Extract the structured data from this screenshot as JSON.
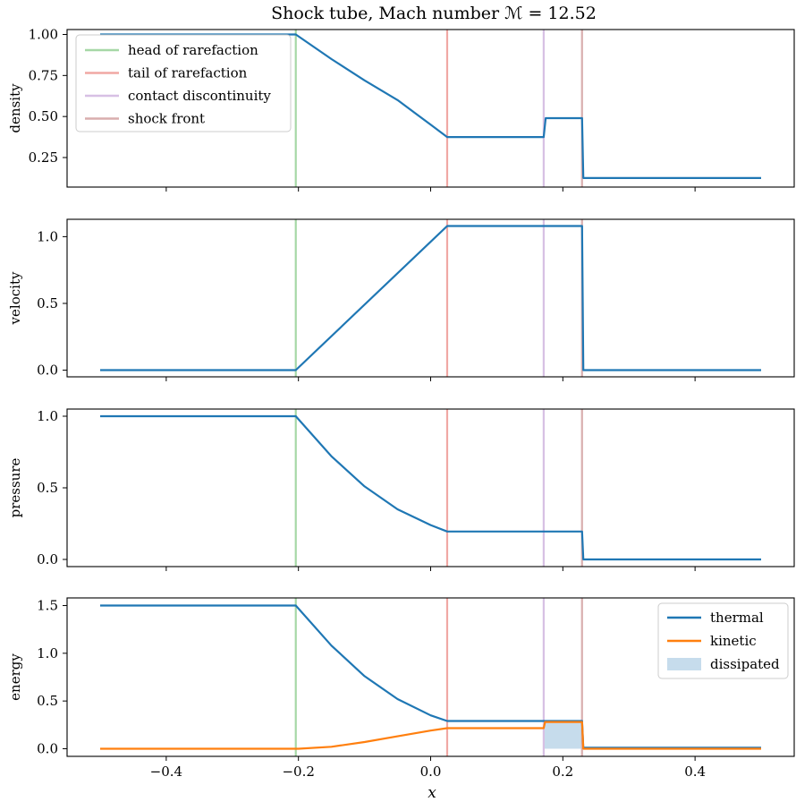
{
  "chart_data": {
    "type": "line",
    "title": "Shock tube, Mach number ℳ = 12.52",
    "xlabel": "x",
    "xlim": [
      -0.55,
      0.55
    ],
    "xticks": [
      -0.4,
      -0.2,
      0.0,
      0.2,
      0.4
    ],
    "xtick_labels": [
      "−0.4",
      "−0.2",
      "0.0",
      "0.2",
      "0.4"
    ],
    "markers": [
      {
        "name": "head of rarefaction",
        "x": -0.204,
        "color": "#a6d8a6"
      },
      {
        "name": "tail of rarefaction",
        "x": 0.025,
        "color": "#f0a8a4"
      },
      {
        "name": "contact discontinuity",
        "x": 0.171,
        "color": "#d7c0e4"
      },
      {
        "name": "shock front",
        "x": 0.229,
        "color": "#d9aeae"
      }
    ],
    "panels": [
      {
        "ylabel": "density",
        "ylim": [
          0.07,
          1.03
        ],
        "yticks": [
          0.25,
          0.5,
          0.75,
          1.0
        ],
        "ytick_labels": [
          "0.25",
          "0.50",
          "0.75",
          "1.00"
        ],
        "legend": "top-left",
        "series": [
          {
            "color": "#1f77b4",
            "x": [
              -0.5,
              -0.204,
              -0.15,
              -0.1,
              -0.05,
              0.0,
              0.025,
              0.171,
              0.174,
              0.229,
              0.231,
              0.5
            ],
            "y": [
              1.0,
              1.0,
              0.85,
              0.72,
              0.6,
              0.45,
              0.375,
              0.375,
              0.49,
              0.49,
              0.125,
              0.125
            ]
          }
        ]
      },
      {
        "ylabel": "velocity",
        "ylim": [
          -0.05,
          1.13
        ],
        "yticks": [
          0.0,
          0.5,
          1.0
        ],
        "ytick_labels": [
          "0.0",
          "0.5",
          "1.0"
        ],
        "series": [
          {
            "color": "#1f77b4",
            "x": [
              -0.5,
              -0.204,
              0.025,
              0.229,
              0.231,
              0.5
            ],
            "y": [
              0.0,
              0.0,
              1.08,
              1.08,
              0.0,
              0.0
            ]
          }
        ]
      },
      {
        "ylabel": "pressure",
        "ylim": [
          -0.05,
          1.05
        ],
        "yticks": [
          0.0,
          0.5,
          1.0
        ],
        "ytick_labels": [
          "0.0",
          "0.5",
          "1.0"
        ],
        "series": [
          {
            "color": "#1f77b4",
            "x": [
              -0.5,
              -0.204,
              -0.15,
              -0.1,
              -0.05,
              0.0,
              0.025,
              0.229,
              0.231,
              0.5
            ],
            "y": [
              1.0,
              1.0,
              0.72,
              0.51,
              0.35,
              0.24,
              0.195,
              0.195,
              0.0,
              0.0
            ]
          }
        ]
      },
      {
        "ylabel": "energy",
        "ylim": [
          -0.08,
          1.58
        ],
        "yticks": [
          0.0,
          0.5,
          1.0,
          1.5
        ],
        "ytick_labels": [
          "0.0",
          "0.5",
          "1.0",
          "1.5"
        ],
        "legend": "top-right",
        "series": [
          {
            "name": "thermal",
            "color": "#1f77b4",
            "x": [
              -0.5,
              -0.204,
              -0.15,
              -0.1,
              -0.05,
              0.0,
              0.025,
              0.171,
              0.229,
              0.231,
              0.5
            ],
            "y": [
              1.5,
              1.5,
              1.08,
              0.76,
              0.52,
              0.35,
              0.29,
              0.29,
              0.29,
              0.01,
              0.01
            ]
          },
          {
            "name": "kinetic",
            "color": "#ff7f0e",
            "x": [
              -0.5,
              -0.2,
              -0.15,
              -0.1,
              -0.05,
              0.0,
              0.025,
              0.171,
              0.173,
              0.229,
              0.231,
              0.5
            ],
            "y": [
              0.0,
              0.0,
              0.02,
              0.07,
              0.13,
              0.19,
              0.215,
              0.215,
              0.28,
              0.28,
              0.0,
              0.0
            ]
          }
        ],
        "band": {
          "name": "dissipated",
          "color": "#c6dcec",
          "x": [
            0.171,
            0.229
          ],
          "y": [
            0.0,
            0.28
          ]
        }
      }
    ]
  }
}
